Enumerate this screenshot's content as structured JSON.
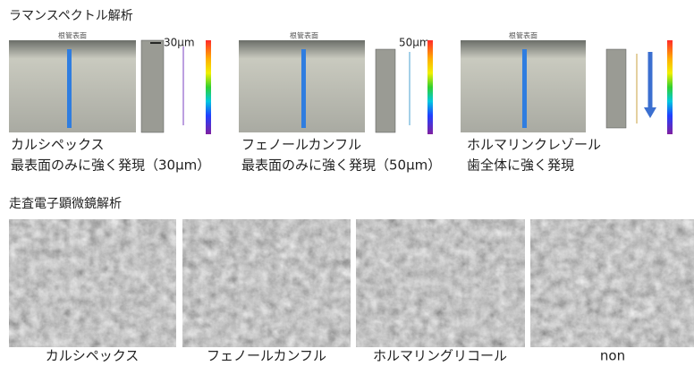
{
  "raman": {
    "title": "ラマンスペクトル解析",
    "panels": [
      {
        "surface_label": "根管表面",
        "scale_label": "30μm",
        "caption": [
          "カルシペックス",
          "最表面のみに強く発現（30μm）"
        ]
      },
      {
        "surface_label": "根管表面",
        "scale_label": "50μm",
        "caption": [
          "フェノールカンフル",
          "最表面のみに強く発現（50μm）"
        ]
      },
      {
        "surface_label": "根管表面",
        "caption": [
          "ホルマリンクレゾール",
          "歯全体に強く発現"
        ]
      }
    ]
  },
  "sem": {
    "title": "走査電子顕微鏡解析",
    "panels": [
      {
        "caption": "カルシペックス"
      },
      {
        "caption": "フェノールカンフル"
      },
      {
        "caption": "ホルマリングリコール"
      },
      {
        "caption": "non"
      }
    ]
  }
}
